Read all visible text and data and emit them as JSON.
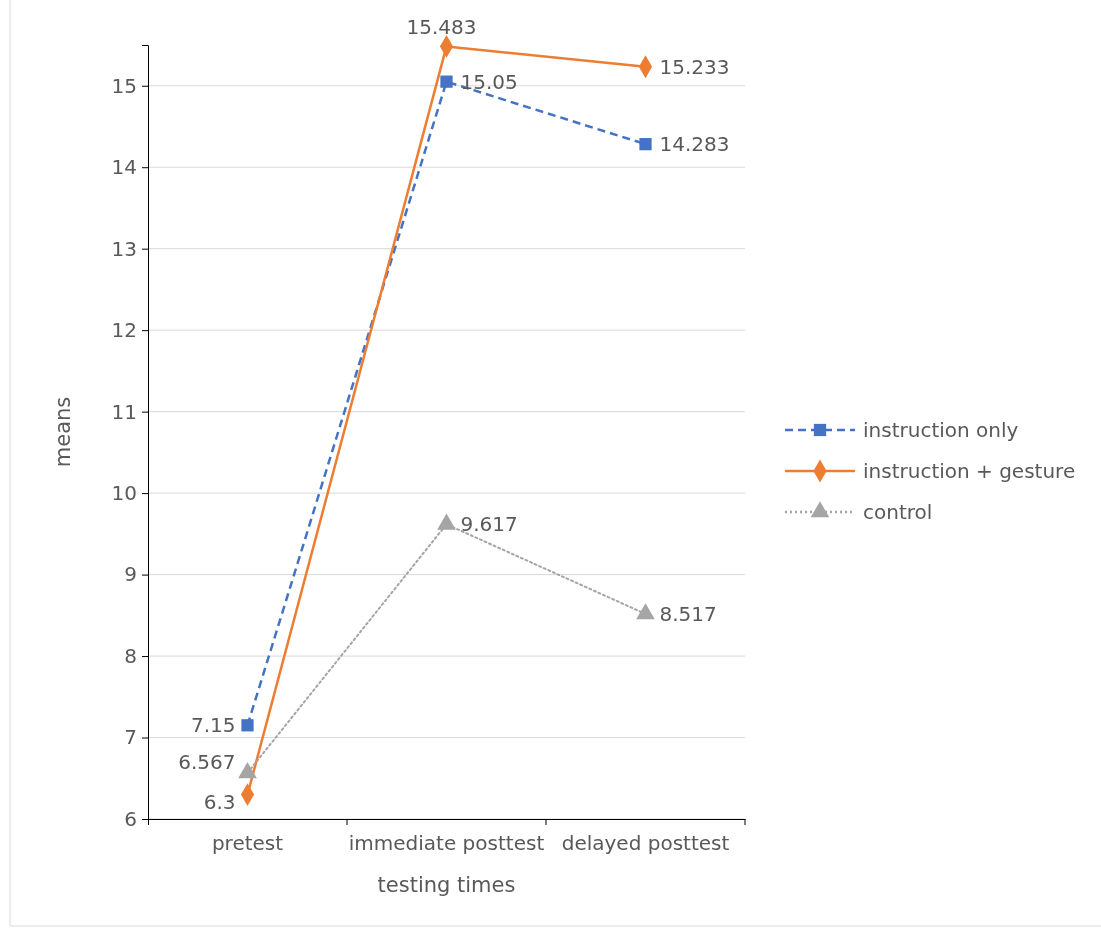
{
  "chart_data": {
    "type": "line",
    "xlabel": "testing times",
    "ylabel": "means",
    "categories": [
      "pretest",
      "immediate posttest",
      "delayed posttest"
    ],
    "series": [
      {
        "name": "instruction only",
        "color": "#4472c4",
        "values": [
          7.15,
          15.05,
          14.283
        ],
        "marker": "square",
        "line_style": "dashed"
      },
      {
        "name": "instruction + gesture",
        "color": "#ed7d31",
        "values": [
          6.3,
          15.483,
          15.233
        ],
        "marker": "diamond",
        "line_style": "solid"
      },
      {
        "name": "control",
        "color": "#a5a5a5",
        "values": [
          6.567,
          9.617,
          8.517
        ],
        "marker": "triangle",
        "line_style": "dotted"
      }
    ],
    "ylim": [
      6,
      15.5
    ],
    "yticks": [
      6,
      7,
      8,
      9,
      10,
      11,
      12,
      13,
      14,
      15
    ],
    "grid": "y",
    "legend": "right",
    "data_labels": true
  }
}
